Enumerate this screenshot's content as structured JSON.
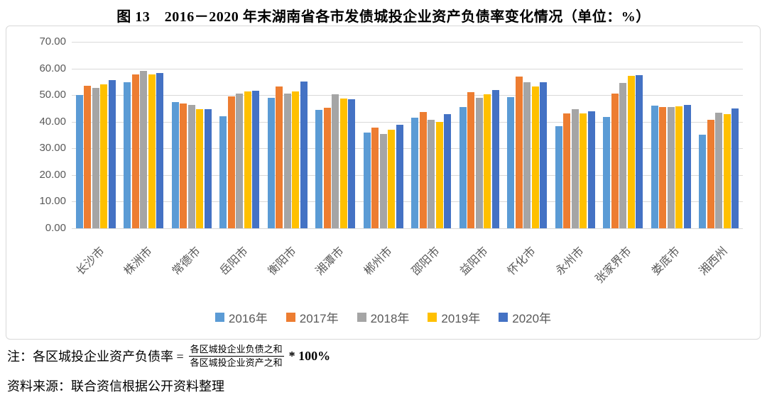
{
  "title": "图 13　2016－2020 年末湖南省各市发债城投企业资产负债率变化情况（单位：%）",
  "chart_data": {
    "type": "bar",
    "title": "图 13　2016－2020 年末湖南省各市发债城投企业资产负债率变化情况（单位：%）",
    "unit": "%",
    "categories": [
      "长沙市",
      "株洲市",
      "常德市",
      "岳阳市",
      "衡阳市",
      "湘潭市",
      "郴州市",
      "邵阳市",
      "益阳市",
      "怀化市",
      "永州市",
      "张家界市",
      "娄底市",
      "湘西州"
    ],
    "series": [
      {
        "name": "2016年",
        "color": "#5B9BD5",
        "values": [
          50.1,
          54.9,
          47.5,
          42.0,
          49.1,
          44.5,
          35.9,
          41.4,
          45.4,
          49.2,
          38.2,
          41.8,
          46.1,
          35.1
        ]
      },
      {
        "name": "2017年",
        "color": "#ED7D31",
        "values": [
          53.5,
          57.8,
          46.9,
          49.6,
          53.3,
          45.3,
          37.9,
          43.6,
          51.0,
          57.0,
          43.2,
          50.6,
          45.5,
          40.8
        ]
      },
      {
        "name": "2018年",
        "color": "#A5A5A5",
        "values": [
          52.8,
          59.0,
          46.4,
          50.5,
          50.5,
          50.4,
          35.4,
          40.7,
          49.0,
          54.8,
          44.6,
          54.6,
          45.5,
          43.4
        ]
      },
      {
        "name": "2019年",
        "color": "#FFC000",
        "values": [
          53.9,
          57.8,
          44.8,
          51.5,
          51.5,
          48.8,
          37.0,
          40.0,
          50.4,
          53.3,
          43.0,
          57.3,
          45.8,
          42.8
        ]
      },
      {
        "name": "2020年",
        "color": "#4472C4",
        "values": [
          55.6,
          58.3,
          44.6,
          51.7,
          55.2,
          48.5,
          38.8,
          42.9,
          51.8,
          54.9,
          43.8,
          57.5,
          46.4,
          45.1
        ]
      }
    ],
    "ylim": [
      0,
      70
    ],
    "ytick_step": 10,
    "ytick_labels": [
      "0.00",
      "10.00",
      "20.00",
      "30.00",
      "40.00",
      "50.00",
      "60.00",
      "70.00"
    ],
    "xlabel": "",
    "ylabel": "",
    "grid": true,
    "legend_position": "bottom"
  },
  "colors": {
    "grid": "#D9D9D9",
    "frame_border": "#D9D9D9",
    "axis_text": "#595959"
  },
  "notes": {
    "note_prefix": "注：各区城投企业资产负债率 =",
    "fraction_numerator": "各区城投企业负债之和",
    "fraction_denominator": "各区城投企业资产之和",
    "note_suffix": "* 100%",
    "source": "资料来源：联合资信根据公开资料整理"
  }
}
